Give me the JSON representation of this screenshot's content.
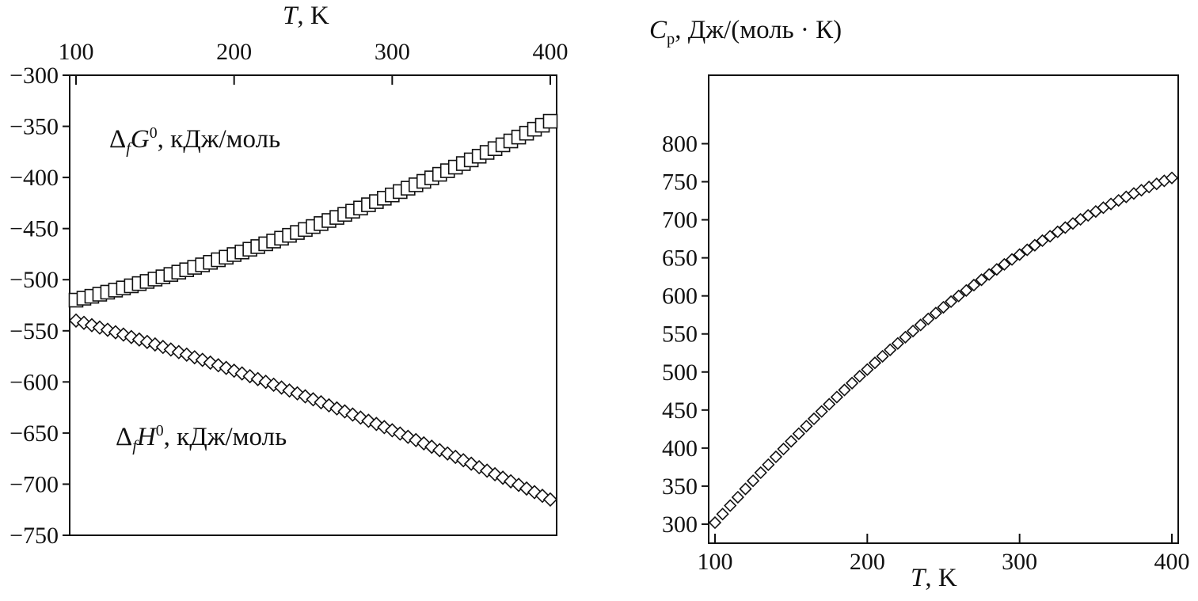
{
  "labels": {
    "left_x_axis": {
      "symbol": "T",
      "rest": ", K"
    },
    "right_x_axis": {
      "symbol": "T",
      "rest": ", K"
    },
    "g_series": {
      "delta": "Δ",
      "sub": "f",
      "symbol": "G",
      "sup": "0",
      "rest": ", кДж/моль"
    },
    "h_series": {
      "delta": "Δ",
      "sub": "f",
      "symbol": "H",
      "sup": "0",
      "rest": ", кДж/моль"
    },
    "cp_axis": {
      "symbol": "C",
      "sub": "p",
      "rest": ", Дж/(моль · К)"
    }
  },
  "colors": {
    "ink": "#111111",
    "marker_fill": "#ffffff",
    "background": "#ffffff"
  },
  "chart_data": [
    {
      "type": "scatter",
      "title": "",
      "xlabel": "T, K",
      "xlabel_position": "top",
      "ylabel": "кДж/моль",
      "xlim": [
        100,
        400
      ],
      "xticks": [
        100,
        200,
        300,
        400
      ],
      "ylim": [
        -750,
        -300
      ],
      "yticks": [
        -750,
        -700,
        -650,
        -600,
        -550,
        -500,
        -450,
        -400,
        -350,
        -300
      ],
      "grid": false,
      "legend": "in-plot text annotations",
      "annotations": [
        "ΔfG0, кДж/моль",
        "ΔfH0, кДж/моль"
      ],
      "x": [
        100,
        105,
        110,
        115,
        120,
        125,
        130,
        135,
        140,
        145,
        150,
        155,
        160,
        165,
        170,
        175,
        180,
        185,
        190,
        195,
        200,
        205,
        210,
        215,
        220,
        225,
        230,
        235,
        240,
        245,
        250,
        255,
        260,
        265,
        270,
        275,
        280,
        285,
        290,
        295,
        300,
        305,
        310,
        315,
        320,
        325,
        330,
        335,
        340,
        345,
        350,
        355,
        360,
        365,
        370,
        375,
        380,
        385,
        390,
        395,
        400
      ],
      "series": [
        {
          "name": "ΔfG0, кДж/моль",
          "marker": "square",
          "values": [
            -520.0,
            -518.1,
            -516.2,
            -514.2,
            -512.2,
            -510.2,
            -508.1,
            -506.0,
            -503.8,
            -501.7,
            -499.4,
            -497.2,
            -494.9,
            -492.6,
            -490.3,
            -487.9,
            -485.5,
            -483.0,
            -480.5,
            -478.0,
            -475.4,
            -472.9,
            -470.2,
            -467.6,
            -464.9,
            -462.2,
            -459.4,
            -456.6,
            -453.8,
            -450.9,
            -448.0,
            -445.1,
            -442.1,
            -439.1,
            -436.1,
            -433.0,
            -429.9,
            -426.7,
            -423.6,
            -420.3,
            -417.1,
            -413.8,
            -410.5,
            -407.2,
            -403.8,
            -400.4,
            -396.9,
            -393.4,
            -389.9,
            -386.4,
            -382.8,
            -379.2,
            -375.5,
            -371.8,
            -368.1,
            -364.3,
            -360.5,
            -356.7,
            -352.8,
            -348.9,
            -345.0
          ]
        },
        {
          "name": "ΔfH0, кДж/моль",
          "marker": "diamond",
          "values": [
            -540.0,
            -542.2,
            -544.5,
            -546.8,
            -549.0,
            -551.4,
            -553.7,
            -556.1,
            -558.5,
            -560.9,
            -563.3,
            -565.8,
            -568.3,
            -570.8,
            -573.3,
            -575.9,
            -578.4,
            -581.1,
            -583.7,
            -586.3,
            -589.0,
            -591.7,
            -594.4,
            -597.2,
            -599.9,
            -602.7,
            -605.5,
            -608.4,
            -611.2,
            -614.1,
            -617.0,
            -619.9,
            -622.9,
            -625.9,
            -628.8,
            -631.9,
            -634.9,
            -638.0,
            -641.1,
            -644.2,
            -647.3,
            -650.5,
            -653.7,
            -656.9,
            -660.1,
            -663.4,
            -666.7,
            -670.0,
            -673.3,
            -676.6,
            -680.0,
            -683.4,
            -686.8,
            -690.3,
            -693.7,
            -697.2,
            -700.7,
            -704.3,
            -707.8,
            -711.4,
            -715.0
          ]
        }
      ]
    },
    {
      "type": "scatter",
      "title": "",
      "xlabel": "T, K",
      "xlabel_position": "bottom",
      "ylabel": "Cp, Дж/(моль · К)",
      "xlim": [
        100,
        400
      ],
      "xticks": [
        100,
        200,
        300,
        400
      ],
      "ylim": [
        275,
        890
      ],
      "yticks": [
        300,
        350,
        400,
        450,
        500,
        550,
        600,
        650,
        700,
        750,
        800
      ],
      "grid": false,
      "legend": "none",
      "x": [
        100,
        105,
        110,
        115,
        120,
        125,
        130,
        135,
        140,
        145,
        150,
        155,
        160,
        165,
        170,
        175,
        180,
        185,
        190,
        195,
        200,
        205,
        210,
        215,
        220,
        225,
        230,
        235,
        240,
        245,
        250,
        255,
        260,
        265,
        270,
        275,
        280,
        285,
        290,
        295,
        300,
        305,
        310,
        315,
        320,
        325,
        330,
        335,
        340,
        345,
        350,
        355,
        360,
        365,
        370,
        375,
        380,
        385,
        390,
        395,
        400
      ],
      "series": [
        {
          "name": "Cp, Дж/(моль · К)",
          "marker": "diamond",
          "values": [
            302.0,
            313.3,
            324.4,
            335.4,
            346.3,
            357.0,
            367.7,
            378.2,
            388.5,
            398.8,
            408.9,
            418.9,
            428.8,
            438.5,
            448.1,
            457.6,
            467.0,
            476.3,
            485.4,
            494.4,
            503.2,
            512.0,
            520.6,
            529.1,
            537.5,
            545.7,
            553.8,
            561.8,
            569.7,
            577.4,
            585.0,
            592.5,
            599.9,
            607.1,
            614.2,
            621.2,
            628.1,
            634.8,
            641.4,
            647.9,
            654.3,
            660.5,
            666.6,
            672.6,
            678.4,
            684.2,
            689.8,
            695.2,
            700.6,
            705.8,
            710.9,
            715.9,
            720.8,
            725.5,
            730.1,
            734.6,
            738.9,
            743.1,
            747.2,
            751.2,
            755.0
          ]
        }
      ]
    }
  ]
}
